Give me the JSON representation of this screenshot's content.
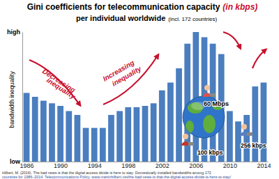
{
  "chart_data": {
    "type": "bar",
    "title": "Gini coefficients for telecommunication capacity",
    "title_note": "(in kbps)",
    "subtitle": "per individual worldwide",
    "subtitle_note": "(incl. 172 countries)",
    "y_label": "bandwidth inequality",
    "x": [
      1986,
      1987,
      1988,
      1989,
      1990,
      1991,
      1992,
      1993,
      1994,
      1995,
      1996,
      1997,
      1998,
      1999,
      2000,
      2001,
      2002,
      2003,
      2004,
      2005,
      2006,
      2007,
      2008,
      2009,
      2010,
      2011,
      2012,
      2013,
      2014
    ],
    "values": [
      53,
      50,
      47,
      45,
      43,
      39,
      36,
      26,
      26,
      26,
      36,
      39,
      42,
      42,
      43,
      45,
      55,
      61,
      72,
      91,
      100,
      96,
      91,
      83,
      39,
      31,
      36,
      58,
      61
    ],
    "color": "#4a7ebf",
    "xlim": [
      1985.5,
      2014.5
    ],
    "xticks": [
      1986,
      1990,
      1994,
      1998,
      2002,
      2006,
      2010,
      2014
    ],
    "ylim": [
      0,
      100
    ],
    "yticks": [
      {
        "value": 0,
        "label": "low"
      },
      {
        "value": 100,
        "label": "high"
      }
    ],
    "grid": false,
    "annotations": [
      "Decreasing",
      "inequality",
      "Increasing",
      "inequality",
      "60 Mbps",
      "256 kbps",
      "100 kbps"
    ],
    "source": [
      "Hilbert, M. (2016). The bad news is that the digital access divide is here to stay: Domestically installed bandwidths among 172",
      "countries for 1986–2014. Telecommunications Policy. www.martinhilbert.net/the-bad-news-is-that-the-digital-access-divide-is-here-to-stay/"
    ]
  }
}
